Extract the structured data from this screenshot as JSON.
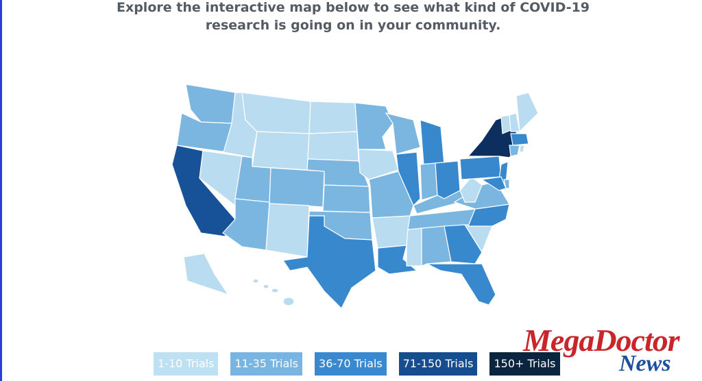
{
  "heading": {
    "lines": [
      "Explore the interactive map below to see what kind of COVID-19",
      "research is going on in your community."
    ]
  },
  "legend": {
    "items": [
      {
        "label": "1-10 Trials",
        "color": "#bde0f3"
      },
      {
        "label": "11-35 Trials",
        "color": "#79b5e0"
      },
      {
        "label": "36-70 Trials",
        "color": "#3889cf"
      },
      {
        "label": "71-150 Trials",
        "color": "#164d8e"
      },
      {
        "label": "150+ Trials",
        "color": "#0b2540"
      }
    ]
  },
  "watermark": {
    "brand": "MegaDoctor",
    "sub": "News"
  }
}
